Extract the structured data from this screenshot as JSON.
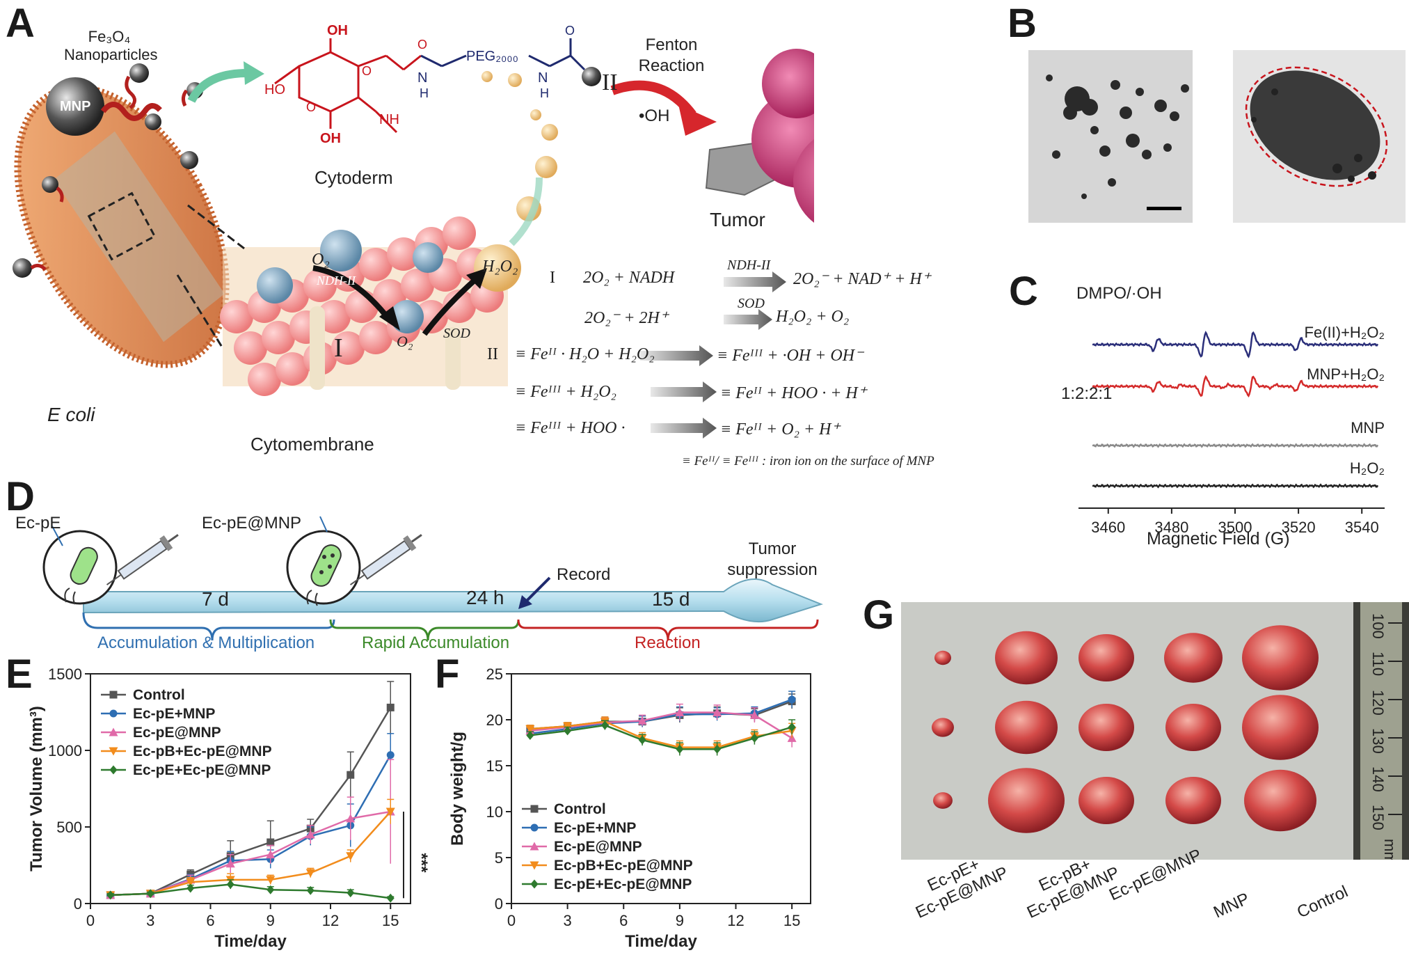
{
  "panels": {
    "A": "A",
    "B": "B",
    "C": "C",
    "D": "D",
    "E": "E",
    "F": "F",
    "G": "G"
  },
  "panelA": {
    "nanoparticles": "Fe₃O₄ Nanoparticles",
    "mnp": "MNP",
    "cytoderm": "Cytoderm",
    "peg": "PEG₂₀₀₀",
    "fenton": "Fenton Reaction",
    "oh": "•OH",
    "tumor": "Tumor",
    "ecoli": "E coli",
    "cytomembrane": "Cytomembrane",
    "roman_I": "I",
    "roman_II": "II",
    "o2": "O₂",
    "ndh": "NDH-II",
    "sod": "SOD",
    "h2o2": "H₂O₂",
    "equations": [
      {
        "num": "I",
        "left": "2O₂ + NADH",
        "enzyme": "NDH-II",
        "right": "2O₂⁻ + NAD⁺ + H⁺"
      },
      {
        "num": "",
        "left": "2O₂⁻ + 2H⁺",
        "enzyme": "SOD",
        "right": "H₂O₂ + O₂"
      },
      {
        "num": "II",
        "left": "≡ Feᴵᴵ · H₂O + H₂O₂",
        "enzyme": "",
        "right": "≡ Feᴵᴵᴵ + ·OH + OH⁻"
      },
      {
        "num": "",
        "left": "≡ Feᴵᴵᴵ + H₂O₂",
        "enzyme": "",
        "right": "≡ Feᴵᴵ + HOO · + H⁺"
      },
      {
        "num": "",
        "left": "≡ Feᴵᴵᴵ + HOO ·",
        "enzyme": "",
        "right": "≡ Feᴵᴵ + O₂ + H⁺"
      }
    ],
    "footnote": "≡ Feᴵᴵ/ ≡ Feᴵᴵᴵ : iron ion on the surface of  MNP"
  },
  "panelC": {
    "title": "DMPO/·OH",
    "ratio": "1:2:2:1",
    "traces": [
      {
        "name": "Fe(II)+H₂O₂",
        "color": "#2b2f7a",
        "amp": 1.0
      },
      {
        "name": "MNP+H₂O₂",
        "color": "#d42a2a",
        "amp": 0.8
      },
      {
        "name": "MNP",
        "color": "#8a8a8a",
        "amp": 0.0
      },
      {
        "name": "H₂O₂",
        "color": "#222222",
        "amp": 0.0
      }
    ],
    "x_ticks": [
      "3460",
      "3480",
      "3500",
      "3520",
      "3540"
    ],
    "xlabel": "Magnetic Field (G)"
  },
  "panelD": {
    "ec_pe": "Ec-pE",
    "ec_pe_mnp": "Ec-pE@MNP",
    "d7": "7 d",
    "h24": "24 h",
    "d15": "15 d",
    "record": "Record",
    "tumor_suppression": "Tumor suppression",
    "phase1": "Accumulation & Multiplication",
    "phase2": "Rapid Accumulation",
    "phase3": "Reaction",
    "phase1_color": "#2f6fb0",
    "phase2_color": "#3c8a2a",
    "phase3_color": "#c42323"
  },
  "chart_data": [
    {
      "type": "line",
      "panel": "E",
      "xlabel": "Time/day",
      "ylabel": "Tumor Volume (mm³)",
      "xlim": [
        0,
        16
      ],
      "ylim": [
        0,
        1500
      ],
      "x_ticks": [
        0,
        3,
        6,
        9,
        12,
        15
      ],
      "y_ticks": [
        0,
        500,
        1000,
        1500
      ],
      "significance": "***",
      "x": [
        1,
        3,
        5,
        7,
        9,
        11,
        13,
        15
      ],
      "series": [
        {
          "name": "Control",
          "color": "#555555",
          "marker": "square",
          "values": [
            55,
            65,
            190,
            310,
            400,
            490,
            840,
            1280
          ],
          "err": [
            10,
            10,
            30,
            100,
            140,
            60,
            150,
            170
          ]
        },
        {
          "name": "Ec-pE+MNP",
          "color": "#2e6eb3",
          "marker": "circle",
          "values": [
            55,
            65,
            160,
            280,
            290,
            440,
            510,
            970
          ],
          "err": [
            10,
            10,
            30,
            60,
            60,
            60,
            140,
            140
          ]
        },
        {
          "name": "Ec-pE@MNP",
          "color": "#e06aa8",
          "marker": "triangle",
          "values": [
            55,
            65,
            155,
            260,
            320,
            450,
            555,
            600
          ],
          "err": [
            10,
            10,
            30,
            60,
            60,
            60,
            140,
            340
          ]
        },
        {
          "name": "Ec-pB+Ec-pE@MNP",
          "color": "#f28c1c",
          "marker": "triangle-down",
          "values": [
            55,
            65,
            140,
            155,
            155,
            200,
            310,
            600
          ],
          "err": [
            10,
            10,
            30,
            40,
            30,
            30,
            40,
            80
          ]
        },
        {
          "name": "Ec-pE+Ec-pE@MNP",
          "color": "#2e7a2e",
          "marker": "diamond",
          "values": [
            55,
            65,
            100,
            125,
            90,
            85,
            70,
            35
          ],
          "err": [
            10,
            10,
            20,
            30,
            20,
            20,
            20,
            10
          ]
        }
      ]
    },
    {
      "type": "line",
      "panel": "F",
      "xlabel": "Time/day",
      "ylabel": "Body weight/g",
      "xlim": [
        0,
        16
      ],
      "ylim": [
        0,
        25
      ],
      "x_ticks": [
        0,
        3,
        6,
        9,
        12,
        15
      ],
      "y_ticks": [
        0,
        5,
        10,
        15,
        20,
        25
      ],
      "x": [
        1,
        3,
        5,
        7,
        9,
        11,
        13,
        15
      ],
      "series": [
        {
          "name": "Control",
          "color": "#555555",
          "marker": "square",
          "values": [
            19.0,
            19.3,
            19.8,
            19.8,
            20.5,
            20.7,
            20.5,
            22.0
          ],
          "err": [
            0.4,
            0.4,
            0.5,
            0.6,
            0.8,
            0.7,
            0.7,
            0.8
          ]
        },
        {
          "name": "Ec-pE+MNP",
          "color": "#2e6eb3",
          "marker": "circle",
          "values": [
            18.5,
            19.0,
            19.6,
            19.8,
            20.6,
            20.6,
            20.7,
            22.2
          ],
          "err": [
            0.4,
            0.4,
            0.5,
            0.6,
            0.8,
            0.7,
            0.7,
            0.9
          ]
        },
        {
          "name": "Ec-pE@MNP",
          "color": "#e06aa8",
          "marker": "triangle",
          "values": [
            18.8,
            19.2,
            19.7,
            19.9,
            20.8,
            20.8,
            20.5,
            18.0
          ],
          "err": [
            0.4,
            0.4,
            0.5,
            0.6,
            0.9,
            0.8,
            0.8,
            1.0
          ]
        },
        {
          "name": "Ec-pB+Ec-pE@MNP",
          "color": "#f28c1c",
          "marker": "triangle-down",
          "values": [
            19.0,
            19.3,
            19.8,
            18.0,
            17.0,
            17.0,
            18.2,
            18.8
          ],
          "err": [
            0.4,
            0.4,
            0.5,
            0.6,
            0.7,
            0.7,
            0.7,
            0.8
          ]
        },
        {
          "name": "Ec-pE+Ec-pE@MNP",
          "color": "#2e7a2e",
          "marker": "diamond",
          "values": [
            18.3,
            18.8,
            19.4,
            17.8,
            16.8,
            16.8,
            18.0,
            19.2
          ],
          "err": [
            0.4,
            0.4,
            0.5,
            0.6,
            0.7,
            0.7,
            0.7,
            0.8
          ]
        }
      ]
    }
  ],
  "panelG": {
    "labels": [
      "Ec-pE+\nEc-pE@MNP",
      "Ec-pB+\nEc-pE@MNP",
      "Ec-pE@MNP",
      "MNP",
      "Control"
    ],
    "ruler_ticks": [
      "100",
      "110",
      "120",
      "130",
      "140",
      "150"
    ],
    "ruler_unit": "mm"
  }
}
